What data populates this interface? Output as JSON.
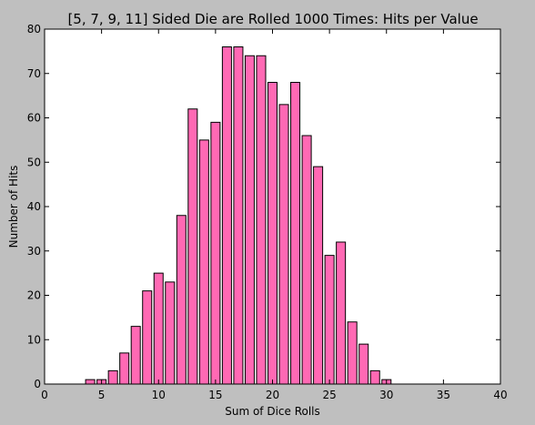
{
  "chart_data": {
    "type": "bar",
    "title": "[5, 7, 9, 11] Sided Die are Rolled 1000 Times: Hits per Value",
    "xlabel": "Sum of Dice Rolls",
    "ylabel": "Number of Hits",
    "xlim": [
      0,
      40
    ],
    "ylim": [
      0,
      80
    ],
    "xticks": [
      0,
      5,
      10,
      15,
      20,
      25,
      30,
      35,
      40
    ],
    "yticks": [
      0,
      10,
      20,
      30,
      40,
      50,
      60,
      70,
      80
    ],
    "x": [
      4,
      5,
      6,
      7,
      8,
      9,
      10,
      11,
      12,
      13,
      14,
      15,
      16,
      17,
      18,
      19,
      20,
      21,
      22,
      23,
      24,
      25,
      26,
      27,
      28,
      29,
      30
    ],
    "values": [
      1,
      1,
      3,
      7,
      13,
      21,
      25,
      23,
      38,
      62,
      55,
      59,
      76,
      76,
      74,
      74,
      68,
      63,
      68,
      56,
      49,
      29,
      32,
      14,
      9,
      3,
      1
    ],
    "bar_color": "#ff69b4",
    "edge_color": "#000000",
    "background": "#bfbfbf",
    "plot_background": "#ffffff",
    "grid": false,
    "legend": false
  }
}
